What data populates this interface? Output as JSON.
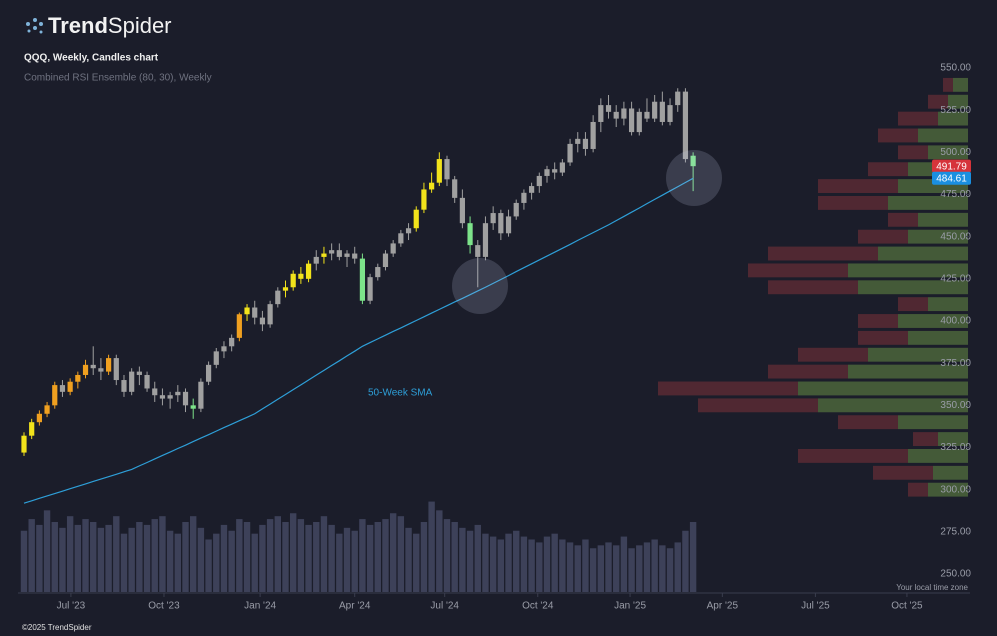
{
  "brand": [
    "Trend",
    "Spider"
  ],
  "footer": "©2025 TrendSpider",
  "chart_data": {
    "type": "candlestick",
    "title": "QQQ, Weekly, Candles chart",
    "subtitle": "Combined RSI Ensemble (80, 30), Weekly",
    "annotation": "50-Week SMA",
    "timezone_note": "Your local time zone",
    "ylim": [
      250,
      550
    ],
    "yticks": [
      {
        "value": 250,
        "label": "250.00"
      },
      {
        "value": 275,
        "label": "275.00"
      },
      {
        "value": 300,
        "label": "300.00"
      },
      {
        "value": 325,
        "label": "325.00"
      },
      {
        "value": 350,
        "label": "350.00"
      },
      {
        "value": 375,
        "label": "375.00"
      },
      {
        "value": 400,
        "label": "400.00"
      },
      {
        "value": 425,
        "label": "425.00"
      },
      {
        "value": 450,
        "label": "450.00"
      },
      {
        "value": 475,
        "label": "475.00"
      },
      {
        "value": 500,
        "label": "500.00"
      },
      {
        "value": 525,
        "label": "525.00"
      },
      {
        "value": 550,
        "label": "550.00"
      }
    ],
    "xlim": [
      -0.78,
      117.8
    ],
    "xticks": [
      {
        "value": 6.1,
        "label": "Jul '23"
      },
      {
        "value": 18.2,
        "label": "Oct '23"
      },
      {
        "value": 30.7,
        "label": "Jan '24"
      },
      {
        "value": 43.0,
        "label": "Apr '24"
      },
      {
        "value": 54.7,
        "label": "Jul '24"
      },
      {
        "value": 66.8,
        "label": "Oct '24"
      },
      {
        "value": 78.8,
        "label": "Jan '25"
      },
      {
        "value": 90.8,
        "label": "Apr '25"
      },
      {
        "value": 102.9,
        "label": "Jul '25"
      },
      {
        "value": 114.8,
        "label": "Oct '25"
      }
    ],
    "candles": {
      "open": [
        322,
        332,
        340,
        345,
        350,
        362,
        358,
        364,
        368,
        374,
        372,
        370,
        378,
        365,
        358,
        370,
        368,
        360,
        356,
        354,
        356,
        358,
        350,
        348,
        364,
        374,
        382,
        385,
        390,
        404,
        408,
        402,
        398,
        410,
        418,
        420,
        428,
        425,
        434,
        438,
        440,
        442,
        438,
        440,
        437,
        412,
        426,
        432,
        440,
        446,
        452,
        455,
        466,
        478,
        482,
        496,
        484,
        473,
        458,
        445,
        438,
        458,
        464,
        452,
        462,
        470,
        476,
        480,
        486,
        490,
        488,
        494,
        505,
        508,
        502,
        518,
        528,
        524,
        520,
        526,
        512,
        524,
        520,
        530,
        518,
        528,
        536,
        498
      ],
      "high": [
        334,
        342,
        347,
        352,
        364,
        365,
        366,
        370,
        377,
        385,
        378,
        380,
        380,
        368,
        372,
        373,
        370,
        364,
        360,
        358,
        362,
        360,
        354,
        366,
        376,
        384,
        388,
        392,
        405,
        410,
        412,
        406,
        412,
        420,
        424,
        430,
        432,
        436,
        442,
        444,
        446,
        446,
        442,
        444,
        440,
        428,
        434,
        442,
        448,
        454,
        458,
        468,
        482,
        488,
        500,
        498,
        486,
        478,
        462,
        448,
        462,
        468,
        466,
        466,
        472,
        478,
        482,
        488,
        492,
        494,
        496,
        508,
        512,
        512,
        522,
        532,
        534,
        528,
        530,
        530,
        526,
        532,
        534,
        536,
        532,
        538,
        538,
        500
      ],
      "low": [
        320,
        330,
        338,
        343,
        348,
        355,
        356,
        360,
        366,
        368,
        365,
        368,
        362,
        355,
        356,
        362,
        358,
        352,
        350,
        348,
        352,
        346,
        342,
        346,
        362,
        372,
        378,
        382,
        388,
        400,
        398,
        394,
        396,
        408,
        414,
        418,
        422,
        423,
        430,
        434,
        436,
        436,
        432,
        434,
        410,
        410,
        424,
        430,
        438,
        444,
        448,
        453,
        464,
        476,
        480,
        480,
        470,
        455,
        440,
        420,
        436,
        454,
        448,
        450,
        460,
        466,
        472,
        476,
        482,
        484,
        486,
        492,
        500,
        498,
        500,
        512,
        520,
        515,
        516,
        510,
        510,
        518,
        518,
        516,
        516,
        524,
        494,
        477
      ],
      "close": [
        332,
        340,
        345,
        350,
        362,
        358,
        364,
        368,
        374,
        372,
        370,
        378,
        365,
        358,
        370,
        368,
        360,
        356,
        354,
        356,
        358,
        350,
        348,
        364,
        374,
        382,
        385,
        390,
        404,
        408,
        402,
        398,
        410,
        418,
        420,
        428,
        425,
        434,
        438,
        440,
        442,
        438,
        440,
        437,
        412,
        426,
        432,
        440,
        446,
        452,
        455,
        466,
        478,
        482,
        496,
        484,
        473,
        458,
        445,
        438,
        458,
        464,
        452,
        462,
        470,
        476,
        480,
        486,
        490,
        488,
        494,
        505,
        508,
        502,
        518,
        528,
        524,
        520,
        526,
        512,
        524,
        520,
        530,
        518,
        528,
        536,
        496,
        491.79
      ],
      "colors": [
        "#f2e31b",
        "#f2e31b",
        "#f0a020",
        "#f0a020",
        "#f0a020",
        "#a0a0a0",
        "#f0a020",
        "#f0a020",
        "#f0a020",
        "#a0a0a0",
        "#a0a0a0",
        "#f0a020",
        "#a0a0a0",
        "#a0a0a0",
        "#a0a0a0",
        "#a0a0a0",
        "#a0a0a0",
        "#a0a0a0",
        "#a0a0a0",
        "#a0a0a0",
        "#a0a0a0",
        "#a0a0a0",
        "#7de38a",
        "#a0a0a0",
        "#a0a0a0",
        "#a0a0a0",
        "#a0a0a0",
        "#a0a0a0",
        "#f0a020",
        "#f2e31b",
        "#a0a0a0",
        "#a0a0a0",
        "#a0a0a0",
        "#a0a0a0",
        "#f2e31b",
        "#f2e31b",
        "#f2e31b",
        "#f2e31b",
        "#a0a0a0",
        "#f2e31b",
        "#a0a0a0",
        "#a0a0a0",
        "#a0a0a0",
        "#a0a0a0",
        "#7de38a",
        "#a0a0a0",
        "#a0a0a0",
        "#a0a0a0",
        "#a0a0a0",
        "#a0a0a0",
        "#a0a0a0",
        "#f2e31b",
        "#f2e31b",
        "#f2e31b",
        "#f2e31b",
        "#a0a0a0",
        "#a0a0a0",
        "#a0a0a0",
        "#7de38a",
        "#a0a0a0",
        "#a0a0a0",
        "#a0a0a0",
        "#a0a0a0",
        "#a0a0a0",
        "#a0a0a0",
        "#a0a0a0",
        "#a0a0a0",
        "#a0a0a0",
        "#a0a0a0",
        "#a0a0a0",
        "#a0a0a0",
        "#a0a0a0",
        "#a0a0a0",
        "#a0a0a0",
        "#a0a0a0",
        "#a0a0a0",
        "#a0a0a0",
        "#a0a0a0",
        "#a0a0a0",
        "#a0a0a0",
        "#a0a0a0",
        "#a0a0a0",
        "#a0a0a0",
        "#a0a0a0",
        "#a0a0a0",
        "#a0a0a0",
        "#a0a0a0",
        "#7de38a"
      ]
    },
    "sma": {
      "color": "#2e9fd8",
      "values": [
        292,
        293.4,
        294.9,
        296.3,
        297.7,
        299.1,
        300.6,
        302,
        303.4,
        304.9,
        306.3,
        307.7,
        309.1,
        310.6,
        312,
        314.1,
        316.1,
        318.2,
        320.3,
        322.3,
        324.4,
        326.4,
        328.5,
        330.6,
        332.6,
        334.7,
        336.8,
        338.8,
        340.9,
        342.9,
        345,
        347.9,
        350.7,
        353.6,
        356.4,
        359.3,
        362.1,
        365,
        367.9,
        370.7,
        373.6,
        376.4,
        379.3,
        382.1,
        385,
        387.2,
        389.4,
        391.6,
        393.8,
        395.9,
        398.1,
        400.3,
        402.5,
        404.7,
        406.9,
        409.1,
        411.3,
        413.4,
        415.6,
        417.8,
        420,
        422.3,
        424.6,
        426.9,
        429.3,
        431.6,
        433.9,
        436.2,
        438.5,
        440.8,
        443.1,
        445.4,
        447.8,
        450.1,
        452.4,
        454.7,
        457,
        459.5,
        462,
        464.5,
        467,
        469.6,
        472.1,
        474.6,
        477.1,
        479.6,
        482.1,
        484.61
      ]
    },
    "volume": {
      "color": "#3d4159",
      "vlim": [
        0,
        360
      ],
      "values": [
        210,
        250,
        230,
        280,
        240,
        220,
        260,
        230,
        250,
        240,
        220,
        230,
        260,
        200,
        220,
        240,
        230,
        250,
        260,
        210,
        200,
        240,
        260,
        220,
        180,
        200,
        230,
        210,
        250,
        240,
        200,
        230,
        250,
        260,
        240,
        270,
        250,
        230,
        240,
        260,
        230,
        200,
        220,
        210,
        250,
        230,
        240,
        250,
        270,
        260,
        220,
        200,
        240,
        310,
        280,
        250,
        240,
        220,
        210,
        230,
        200,
        190,
        180,
        200,
        210,
        190,
        180,
        170,
        190,
        200,
        180,
        170,
        160,
        180,
        150,
        160,
        170,
        160,
        190,
        150,
        160,
        170,
        180,
        160,
        150,
        170,
        210,
        240
      ]
    },
    "volume_profile": {
      "up_color": "#4f6a3c",
      "down_color": "#5e2c35",
      "xlim": [
        0,
        320
      ],
      "step": 10,
      "prices": [
        300,
        310,
        320,
        330,
        340,
        350,
        360,
        370,
        380,
        390,
        400,
        410,
        420,
        430,
        440,
        450,
        460,
        470,
        480,
        490,
        500,
        510,
        520,
        530,
        540
      ],
      "up": [
        40,
        35,
        60,
        30,
        70,
        150,
        170,
        120,
        100,
        60,
        70,
        40,
        110,
        120,
        90,
        60,
        50,
        80,
        70,
        60,
        40,
        50,
        30,
        20,
        15
      ],
      "down": [
        20,
        60,
        110,
        25,
        60,
        120,
        140,
        80,
        70,
        50,
        40,
        30,
        90,
        100,
        110,
        50,
        30,
        70,
        80,
        40,
        30,
        40,
        40,
        20,
        10
      ]
    },
    "tag_colors": [
      "#d6343a",
      "#1a8fe0"
    ]
  }
}
